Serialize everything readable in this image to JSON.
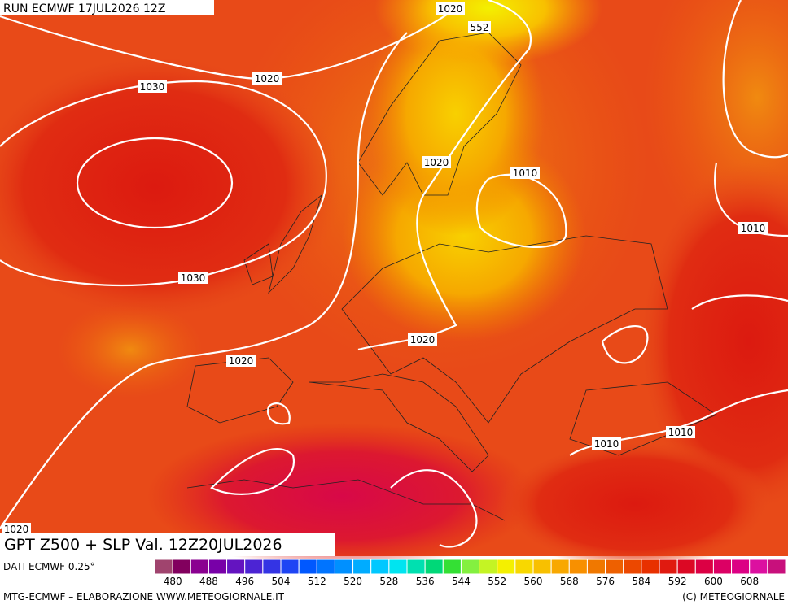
{
  "header": {
    "run": "RUN ECMWF 17JUL2026 12Z",
    "title": "GPT Z500 + SLP Val. 12Z20JUL2026"
  },
  "isobar_labels": [
    1020,
    552,
    1020,
    1030,
    1020,
    1010,
    1010,
    1030,
    1020,
    1020,
    1010,
    1010,
    1020
  ],
  "scale": {
    "colors": [
      "#a0446e",
      "#82005e",
      "#8a0090",
      "#7800a8",
      "#6414c0",
      "#4c24d4",
      "#3434e4",
      "#1e44f4",
      "#0058ff",
      "#0074ff",
      "#0090ff",
      "#00acff",
      "#00c8ff",
      "#00e4f0",
      "#00e0b0",
      "#00d878",
      "#34e034",
      "#84f040",
      "#c4f424",
      "#f4f000",
      "#f8d800",
      "#f8c000",
      "#f8a800",
      "#f89000",
      "#f07800",
      "#ee6000",
      "#ec4800",
      "#e83000",
      "#e01a10",
      "#dc0824",
      "#dc0044",
      "#dc0064",
      "#dc0084",
      "#dc10a0",
      "#c8107c"
    ],
    "labels": [
      480,
      488,
      496,
      504,
      512,
      520,
      528,
      536,
      544,
      552,
      560,
      568,
      576,
      584,
      592,
      600,
      608
    ]
  },
  "footer": {
    "source": "DATI ECMWF 0.25°",
    "credit": "MTG-ECMWF – ELABORAZIONE WWW.METEOGIORNALE.IT",
    "copyright": "(C) METEOGIORNALE"
  }
}
